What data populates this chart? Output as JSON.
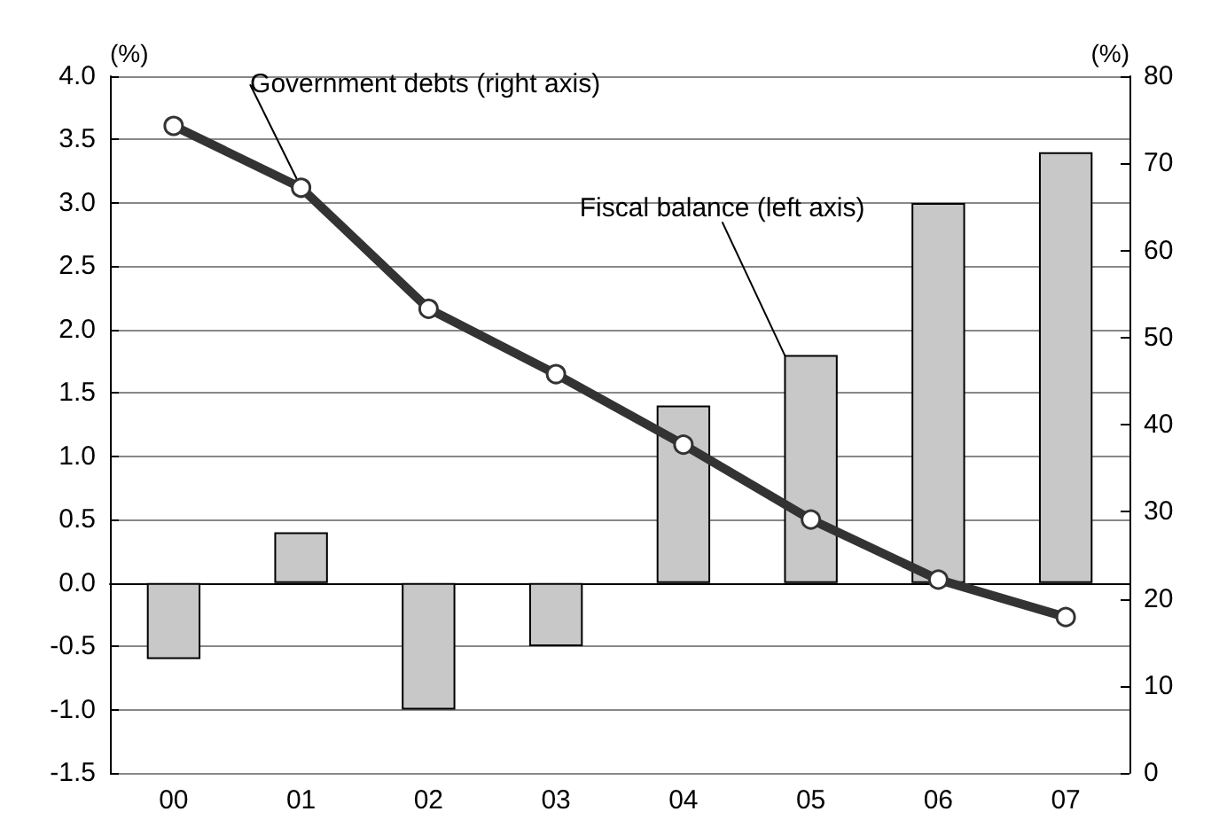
{
  "chart_data": {
    "type": "bar",
    "ylabel": "(%)",
    "y2label": "(%)",
    "categories": [
      "00",
      "01",
      "02",
      "03",
      "04",
      "05",
      "06",
      "07"
    ],
    "series": [
      {
        "name": "Fiscal balance (left axis)",
        "color": "#c8c8c8",
        "values": [
          -0.6,
          0.4,
          -1.0,
          -0.5,
          1.4,
          1.8,
          3.0,
          3.4
        ]
      },
      {
        "name": "Government debts (right axis)",
        "type": "line",
        "axis": "y2",
        "color": "#333333",
        "marker": "circle",
        "line_style": "solid",
        "values": [
          74.3,
          67.2,
          53.3,
          45.8,
          37.7,
          29.1,
          22.2,
          17.9
        ]
      }
    ],
    "ylim": [
      -1.5,
      4.0
    ],
    "yticks": [
      {
        "value": -1.5,
        "label": "-1.5"
      },
      {
        "value": -1,
        "label": "-1.0"
      },
      {
        "value": -0.5,
        "label": "-0.5"
      },
      {
        "value": 0,
        "label": "0.0"
      },
      {
        "value": 0.5,
        "label": "0.5"
      },
      {
        "value": 1,
        "label": "1.0"
      },
      {
        "value": 1.5,
        "label": "1.5"
      },
      {
        "value": 2,
        "label": "2.0"
      },
      {
        "value": 2.5,
        "label": "2.5"
      },
      {
        "value": 3,
        "label": "3.0"
      },
      {
        "value": 3.5,
        "label": "3.5"
      },
      {
        "value": 4,
        "label": "4.0"
      }
    ],
    "y2lim": [
      0,
      80
    ],
    "y2ticks": [
      0,
      10,
      20,
      30,
      40,
      50,
      60,
      70,
      80
    ],
    "grid": "y",
    "legend": false
  }
}
